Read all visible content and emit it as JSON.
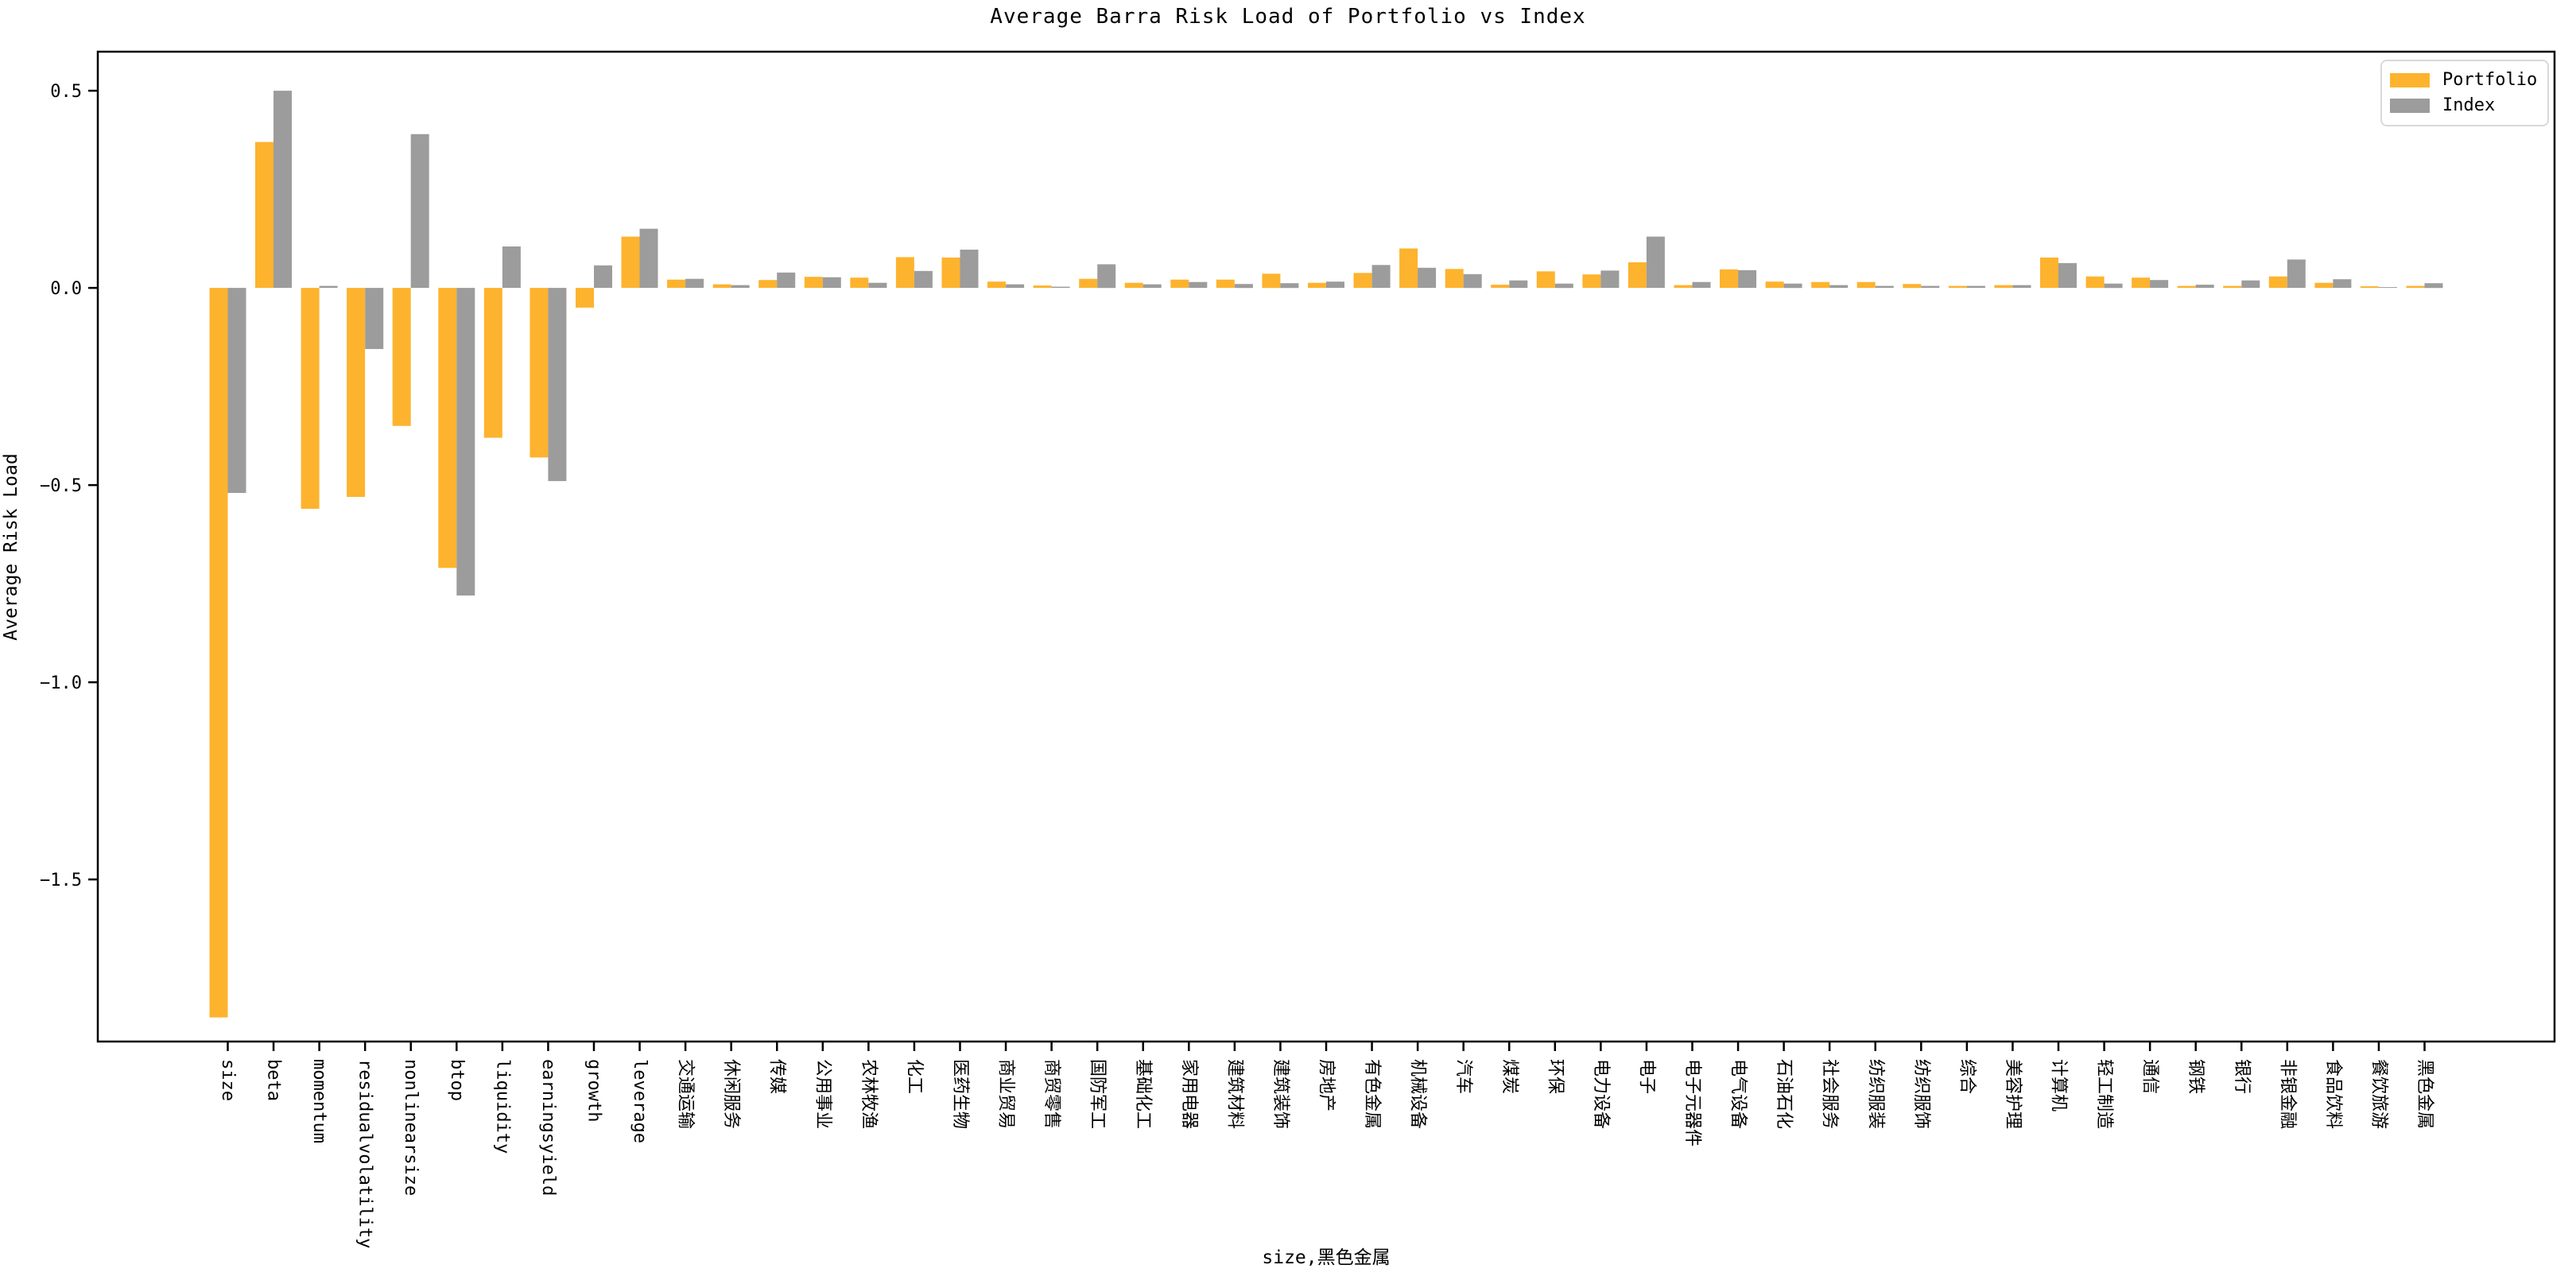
{
  "title": "Average Barra Risk Load of Portfolio vs Index",
  "axes": {
    "ylabel": "Average Risk Load",
    "xlabel": "size,黑色金属",
    "yticks": [
      0.5,
      0.0,
      -0.5,
      -1.0,
      -1.5
    ]
  },
  "colors": {
    "portfolio": "#FDB32E",
    "index": "#9C9C9C",
    "spine": "#000000",
    "background": "#FFFFFF",
    "legend_border": "#D9D9D9"
  },
  "chart_data": {
    "type": "bar",
    "title": "Average Barra Risk Load of Portfolio vs Index",
    "xlabel": "size,黑色金属",
    "ylabel": "Average Risk Load",
    "ylim": [
      -1.911,
      0.599
    ],
    "yticks": [
      0.5,
      0.0,
      -0.5,
      -1.0,
      -1.5
    ],
    "grid": false,
    "legend_position": "upper right",
    "categories": [
      "size",
      "beta",
      "momentum",
      "residualvolatility",
      "nonlinearsize",
      "btop",
      "liquidity",
      "earningsyield",
      "growth",
      "leverage",
      "交通运输",
      "休闲服务",
      "传媒",
      "公用事业",
      "农林牧渔",
      "化工",
      "医药生物",
      "商业贸易",
      "商贸零售",
      "国防军工",
      "基础化工",
      "家用电器",
      "建筑材料",
      "建筑装饰",
      "房地产",
      "有色金属",
      "机械设备",
      "汽车",
      "煤炭",
      "环保",
      "电力设备",
      "电子",
      "电子元器件",
      "电气设备",
      "石油石化",
      "社会服务",
      "纺织服装",
      "纺织服饰",
      "综合",
      "美容护理",
      "计算机",
      "轻工制造",
      "通信",
      "钢铁",
      "银行",
      "非银金融",
      "食品饮料",
      "餐饮旅游",
      "黑色金属"
    ],
    "series": [
      {
        "name": "Portfolio",
        "color": "#FDB32E",
        "values": [
          -1.85,
          0.37,
          -0.56,
          -0.53,
          -0.35,
          -0.71,
          -0.38,
          -0.43,
          -0.05,
          0.13,
          0.021,
          0.009,
          0.02,
          0.028,
          0.026,
          0.078,
          0.077,
          0.016,
          0.006,
          0.023,
          0.013,
          0.021,
          0.021,
          0.036,
          0.013,
          0.038,
          0.1,
          0.048,
          0.008,
          0.042,
          0.034,
          0.065,
          0.007,
          0.047,
          0.016,
          0.015,
          0.015,
          0.01,
          0.005,
          0.007,
          0.077,
          0.029,
          0.026,
          0.005,
          0.005,
          0.029,
          0.013,
          0.004,
          0.005
        ]
      },
      {
        "name": "Index",
        "color": "#9C9C9C",
        "values": [
          -0.52,
          0.5,
          0.005,
          -0.155,
          0.39,
          -0.78,
          0.105,
          -0.49,
          0.057,
          0.15,
          0.023,
          0.007,
          0.039,
          0.027,
          0.013,
          0.043,
          0.097,
          0.009,
          0.003,
          0.06,
          0.009,
          0.015,
          0.01,
          0.012,
          0.016,
          0.058,
          0.051,
          0.035,
          0.019,
          0.011,
          0.044,
          0.13,
          0.015,
          0.045,
          0.011,
          0.007,
          0.005,
          0.005,
          0.005,
          0.007,
          0.063,
          0.011,
          0.02,
          0.008,
          0.019,
          0.072,
          0.022,
          0.002,
          0.012
        ]
      }
    ]
  }
}
